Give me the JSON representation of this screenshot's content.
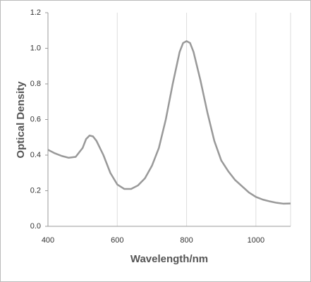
{
  "chart_data": {
    "type": "line",
    "x_label": "Wavelength/nm",
    "y_label": "Optical Density",
    "x": [
      400,
      420,
      440,
      460,
      480,
      500,
      510,
      520,
      530,
      540,
      560,
      580,
      600,
      620,
      640,
      660,
      680,
      700,
      720,
      740,
      760,
      780,
      790,
      800,
      810,
      820,
      840,
      860,
      880,
      900,
      920,
      940,
      960,
      980,
      1000,
      1020,
      1040,
      1060,
      1080,
      1100
    ],
    "series": [
      {
        "color": "#999999",
        "values": [
          0.43,
          0.41,
          0.395,
          0.385,
          0.39,
          0.44,
          0.49,
          0.51,
          0.505,
          0.48,
          0.4,
          0.3,
          0.235,
          0.21,
          0.21,
          0.23,
          0.27,
          0.34,
          0.44,
          0.6,
          0.8,
          0.98,
          1.03,
          1.04,
          1.03,
          0.98,
          0.82,
          0.64,
          0.48,
          0.37,
          0.31,
          0.26,
          0.225,
          0.19,
          0.165,
          0.15,
          0.14,
          0.132,
          0.127,
          0.128
        ]
      }
    ],
    "xlim": [
      400,
      1100
    ],
    "xticks": [
      400,
      600,
      800,
      1000
    ],
    "ylim": [
      0,
      1.2
    ],
    "yticks": [
      {
        "value": 0,
        "label": "0.0"
      },
      0.2,
      0.4,
      0.6,
      0.8,
      {
        "value": 1,
        "label": "1.0"
      },
      1.2
    ],
    "grid": true
  }
}
